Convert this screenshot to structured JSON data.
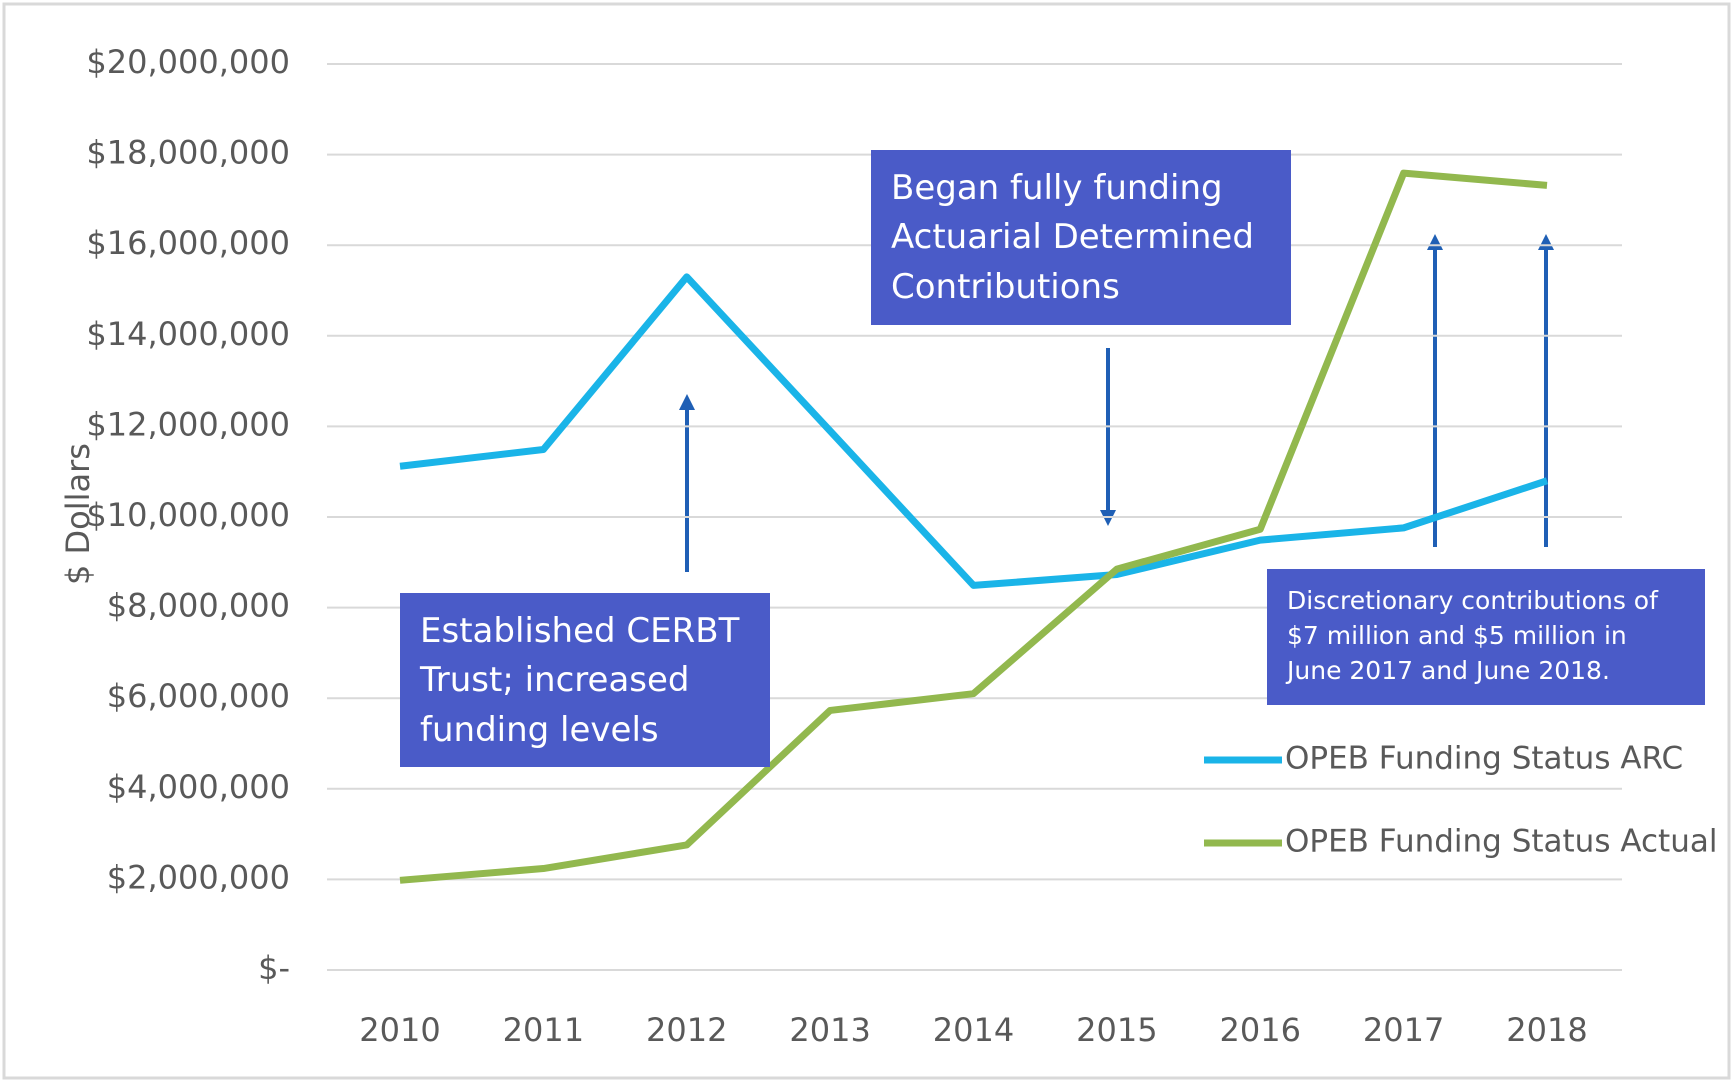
{
  "chart_data": {
    "type": "line",
    "y_label": "$ Dollars",
    "categories": [
      "2010",
      "2011",
      "2012",
      "2013",
      "2014",
      "2015",
      "2016",
      "2017",
      "2018"
    ],
    "series": [
      {
        "name": "OPEB Funding Status ARC",
        "color": "#1ab4e8",
        "values": [
          11120000,
          11490000,
          15300000,
          11900000,
          8490000,
          8730000,
          9490000,
          9760000,
          10800000
        ]
      },
      {
        "name": "OPEB Funding Status Actual",
        "color": "#92b84e",
        "values": [
          1980000,
          2240000,
          2760000,
          5730000,
          6100000,
          8850000,
          9730000,
          17590000,
          17320000
        ]
      }
    ],
    "ylim": [
      0,
      20000000
    ],
    "yticks": [
      {
        "value": 0,
        "label": "$-"
      },
      {
        "value": 2000000,
        "label": "$2,000,000"
      },
      {
        "value": 4000000,
        "label": "$4,000,000"
      },
      {
        "value": 6000000,
        "label": "$6,000,000"
      },
      {
        "value": 8000000,
        "label": "$8,000,000"
      },
      {
        "value": 10000000,
        "label": "$10,000,000"
      },
      {
        "value": 12000000,
        "label": "$12,000,000"
      },
      {
        "value": 14000000,
        "label": "$14,000,000"
      },
      {
        "value": 16000000,
        "label": "$16,000,000"
      },
      {
        "value": 18000000,
        "label": "$18,000,000"
      },
      {
        "value": 20000000,
        "label": "$20,000,000"
      }
    ],
    "grid": true,
    "legend": "right",
    "annotations": [
      "Established CERBT Trust; increased funding levels",
      "Began fully funding Actuarial Determined Contributions",
      "Discretionary contributions of $7 million and $5 million in June 2017 and June 2018."
    ]
  }
}
